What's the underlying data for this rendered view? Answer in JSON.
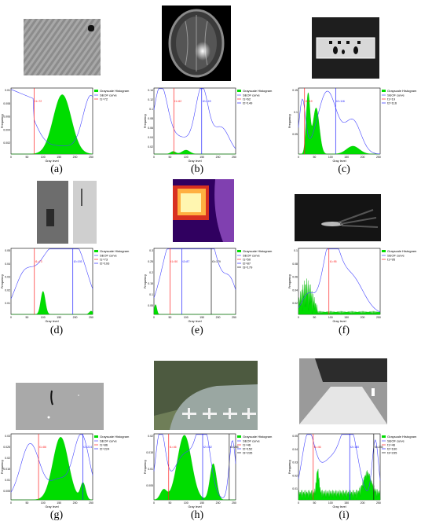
{
  "figure": {
    "legend_histogram": "Grayscale Histogram",
    "legend_curve": "SEOF curve",
    "xlabel": "Gray level",
    "ylabel": "Frequency",
    "colors": {
      "hist": "#00dd00",
      "curve": "#4444ff",
      "t1": "#ff2222",
      "t2": "#2222ff",
      "t3": "#111111"
    }
  },
  "panels": [
    {
      "caption": "(a)",
      "thresholds": [
        "t1=72"
      ],
      "marks": [
        "t1=72"
      ],
      "yticks": [
        "0.01",
        "0.008",
        "0.006",
        "0.004",
        "0.002"
      ],
      "xticks": [
        "0",
        "50",
        "100",
        "150",
        "200",
        "250"
      ]
    },
    {
      "caption": "(b)",
      "thresholds": [
        "t1=62",
        "t2=149"
      ],
      "marks": [
        "t1=62",
        "t2=149"
      ],
      "yticks": [
        "0.14",
        "0.12",
        "0.1",
        "0.08",
        "0.06",
        "0.04",
        "0.02"
      ],
      "xticks": [
        "0",
        "50",
        "100",
        "150",
        "200",
        "250"
      ]
    },
    {
      "caption": "(c)",
      "thresholds": [
        "t1=19",
        "t2=116"
      ],
      "marks": [
        "t1=19",
        "t2=116"
      ],
      "yticks": [
        "0.15",
        "0.1",
        "0.05"
      ],
      "xticks": [
        "0",
        "50",
        "100",
        "150",
        "200",
        "250"
      ]
    },
    {
      "caption": "(d)",
      "thresholds": [
        "t1=73",
        "t2=193"
      ],
      "marks": [
        "t1=73",
        "t2=193"
      ],
      "yticks": [
        "0.05",
        "0.04",
        "0.03",
        "0.02",
        "0.01"
      ],
      "xticks": [
        "0",
        "50",
        "100",
        "150",
        "200",
        "250"
      ]
    },
    {
      "caption": "(e)",
      "thresholds": [
        "t1=50",
        "t2=87",
        "t3=179"
      ],
      "marks": [
        "t1=50",
        "t2=87",
        "t3=179"
      ],
      "yticks": [
        "0.3",
        "0.25",
        "0.2",
        "0.15",
        "0.1",
        "0.05"
      ],
      "xticks": [
        "0",
        "50",
        "100",
        "150",
        "200",
        "250"
      ]
    },
    {
      "caption": "(f)",
      "thresholds": [
        "t1=95"
      ],
      "marks": [
        "t1=95"
      ],
      "yticks": [
        "0.1",
        "0.08",
        "0.06",
        "0.04",
        "0.02"
      ],
      "xticks": [
        "0",
        "50",
        "100",
        "150",
        "200",
        "250"
      ]
    },
    {
      "caption": "(g)",
      "thresholds": [
        "t1=86",
        "t2=224"
      ],
      "marks": [
        "t1=86",
        "t2=224"
      ],
      "yticks": [
        "0.03",
        "0.025",
        "0.02",
        "0.015",
        "0.01",
        "0.005"
      ],
      "xticks": [
        "0",
        "50",
        "100",
        "150",
        "200",
        "250"
      ]
    },
    {
      "caption": "(h)",
      "thresholds": [
        "t1=46",
        "t2=152",
        "t3=235"
      ],
      "marks": [
        "t1=46",
        "t2=152",
        "t3=235"
      ],
      "yticks": [
        "0.02",
        "0.015",
        "0.01",
        "0.005"
      ],
      "xticks": [
        "0",
        "50",
        "100",
        "150",
        "200",
        "250"
      ]
    },
    {
      "caption": "(i)",
      "thresholds": [
        "t1=46",
        "t2=160",
        "t3=235"
      ],
      "marks": [
        "t1=46",
        "t2=160",
        "t3=235"
      ],
      "yticks": [
        "0.05",
        "0.04",
        "0.03",
        "0.02",
        "0.01"
      ],
      "xticks": [
        "0",
        "50",
        "100",
        "150",
        "200",
        "250"
      ]
    }
  ],
  "chart_data": [
    {
      "type": "area",
      "panel": "a",
      "xlim": [
        0,
        255
      ],
      "ylim": [
        0,
        0.01
      ],
      "hist_peak": 160,
      "thresholds": [
        72
      ]
    },
    {
      "type": "area",
      "panel": "b",
      "xlim": [
        0,
        255
      ],
      "ylim": [
        0,
        0.14
      ],
      "thresholds": [
        62,
        149
      ]
    },
    {
      "type": "area",
      "panel": "c",
      "xlim": [
        0,
        255
      ],
      "ylim": [
        0,
        0.15
      ],
      "thresholds": [
        19,
        116
      ]
    },
    {
      "type": "area",
      "panel": "d",
      "xlim": [
        0,
        255
      ],
      "ylim": [
        0,
        0.05
      ],
      "thresholds": [
        73,
        193
      ]
    },
    {
      "type": "area",
      "panel": "e",
      "xlim": [
        0,
        255
      ],
      "ylim": [
        0,
        0.3
      ],
      "thresholds": [
        50,
        87,
        179
      ]
    },
    {
      "type": "area",
      "panel": "f",
      "xlim": [
        0,
        255
      ],
      "ylim": [
        0,
        0.1
      ],
      "thresholds": [
        95
      ]
    },
    {
      "type": "area",
      "panel": "g",
      "xlim": [
        0,
        255
      ],
      "ylim": [
        0,
        0.03
      ],
      "thresholds": [
        86,
        224
      ]
    },
    {
      "type": "area",
      "panel": "h",
      "xlim": [
        0,
        255
      ],
      "ylim": [
        0,
        0.02
      ],
      "thresholds": [
        46,
        152,
        235
      ]
    },
    {
      "type": "area",
      "panel": "i",
      "xlim": [
        0,
        255
      ],
      "ylim": [
        0,
        0.05
      ],
      "thresholds": [
        46,
        160,
        235
      ]
    }
  ]
}
